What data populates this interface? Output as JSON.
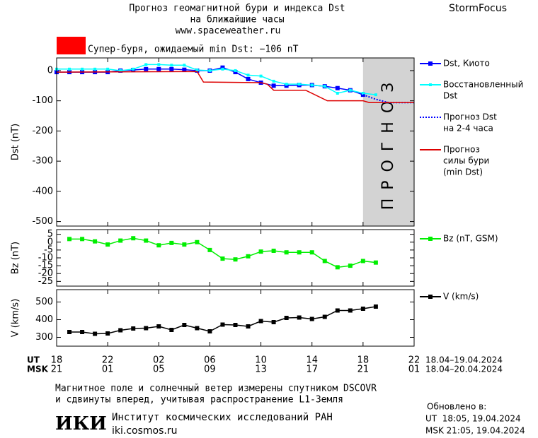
{
  "header": {
    "title": [
      "Прогноз геомагнитной бури и индекса Dst",
      "на ближайшие часы"
    ],
    "url": "www.spaceweather.ru",
    "brand": "StormFocus",
    "alert": "Супер-буря, ожидаемый min Dst: −106 nT",
    "alert_color": "#ff0000"
  },
  "chart_data": [
    {
      "type": "line",
      "ylabel": "Dst (nT)",
      "xlim": [
        0,
        28
      ],
      "ylim": [
        -515,
        42
      ],
      "yticks": [
        0,
        -100,
        -200,
        -300,
        -400,
        -500
      ],
      "forecast_region": {
        "xlim": [
          24,
          28
        ],
        "label": "ПРОГНОЗ",
        "color": "#d3d3d3"
      },
      "series": [
        {
          "name": [
            "Dst, Киото"
          ],
          "color": "#0000ff",
          "marker": "square",
          "style": "solid",
          "x": [
            0,
            1,
            2,
            3,
            4,
            5,
            6,
            7,
            8,
            9,
            10,
            11,
            12,
            13,
            14,
            15,
            16,
            17,
            18,
            19,
            20,
            21,
            22,
            23,
            24
          ],
          "values": [
            -5,
            -5,
            -5,
            -5,
            -5,
            0,
            2,
            5,
            5,
            5,
            3,
            0,
            0,
            10,
            -5,
            -28,
            -40,
            -50,
            -50,
            -48,
            -48,
            -52,
            -58,
            -65,
            -80
          ]
        },
        {
          "name": [
            "Восстановленный",
            "Dst"
          ],
          "color": "#00ffff",
          "marker": "small-square",
          "style": "solid",
          "x": [
            0,
            1,
            2,
            3,
            4,
            5,
            6,
            7,
            8,
            9,
            10,
            11,
            12,
            13,
            14,
            15,
            16,
            17,
            18,
            19,
            20,
            21,
            22,
            23,
            24,
            25
          ],
          "values": [
            5,
            5,
            5,
            5,
            5,
            0,
            5,
            20,
            20,
            18,
            18,
            2,
            0,
            5,
            0,
            -15,
            -18,
            -35,
            -45,
            -45,
            -48,
            -52,
            -75,
            -65,
            -75,
            -80
          ]
        },
        {
          "name": [
            "Прогноз Dst",
            "на 2-4 часа"
          ],
          "color": "#0000ff",
          "marker": "none",
          "style": "dotted",
          "x": [
            24,
            25,
            26,
            27,
            28
          ],
          "values": [
            -80,
            -95,
            -106,
            -106,
            -106
          ]
        },
        {
          "name": [
            "Прогноз",
            "силы бури",
            "(min Dst)"
          ],
          "color": "#dd0000",
          "marker": "none",
          "style": "solid",
          "x": [
            0,
            11,
            11.5,
            16,
            16.5,
            17,
            19.5,
            21.2,
            24,
            24.5,
            28
          ],
          "values": [
            -5,
            -3,
            -38,
            -40,
            -45,
            -65,
            -65,
            -100,
            -100,
            -106,
            -106
          ]
        }
      ]
    },
    {
      "type": "line",
      "ylabel": "Bz (nT)",
      "xlim": [
        0,
        28
      ],
      "ylim": [
        -28,
        8
      ],
      "yticks": [
        5,
        0,
        -5,
        -10,
        -15,
        -20,
        -25
      ],
      "series": [
        {
          "name": [
            "Bz (nT, GSM)"
          ],
          "color": "#00ee00",
          "marker": "square",
          "style": "solid",
          "x": [
            1,
            2,
            3,
            4,
            5,
            6,
            7,
            8,
            9,
            10,
            11,
            12,
            13,
            14,
            15,
            16,
            17,
            18,
            19,
            20,
            21,
            22,
            23,
            24,
            25
          ],
          "values": [
            2,
            2,
            0.5,
            -1.5,
            1,
            2.5,
            1,
            -2,
            -0.5,
            -1.5,
            0,
            -5,
            -10.5,
            -11,
            -9,
            -6,
            -5.5,
            -6.5,
            -6.5,
            -6.5,
            -12,
            -16,
            -15,
            -12,
            -13
          ]
        }
      ]
    },
    {
      "type": "line",
      "ylabel": "V (km/s)",
      "xlim": [
        0,
        28
      ],
      "ylim": [
        250,
        570
      ],
      "yticks": [
        300,
        400,
        500
      ],
      "xticks": [
        {
          "value": 0,
          "label": "18"
        },
        {
          "value": 4,
          "label": "22"
        },
        {
          "value": 8,
          "label": "02"
        },
        {
          "value": 12,
          "label": "06"
        },
        {
          "value": 16,
          "label": "10"
        },
        {
          "value": 20,
          "label": "14"
        },
        {
          "value": 24,
          "label": "18"
        },
        {
          "value": 28,
          "label": "22"
        }
      ],
      "msk_ticks": [
        {
          "value": 0,
          "label": "21"
        },
        {
          "value": 4,
          "label": "01"
        },
        {
          "value": 8,
          "label": "05"
        },
        {
          "value": 12,
          "label": "09"
        },
        {
          "value": 16,
          "label": "13"
        },
        {
          "value": 20,
          "label": "17"
        },
        {
          "value": 24,
          "label": "21"
        },
        {
          "value": 28,
          "label": "01"
        }
      ],
      "row_labels": [
        "UT",
        "MSK"
      ],
      "date_ranges": [
        "18.04–19.04.2024",
        "18.04–20.04.2024"
      ],
      "series": [
        {
          "name": [
            "V (km/s)"
          ],
          "color": "#000000",
          "marker": "square",
          "style": "solid",
          "x": [
            1,
            2,
            3,
            4,
            5,
            6,
            7,
            8,
            9,
            10,
            11,
            12,
            13,
            14,
            15,
            16,
            17,
            18,
            19,
            20,
            21,
            22,
            23,
            24,
            25
          ],
          "values": [
            330,
            330,
            320,
            322,
            340,
            350,
            352,
            362,
            342,
            370,
            352,
            334,
            372,
            370,
            362,
            392,
            386,
            410,
            412,
            404,
            416,
            452,
            452,
            462,
            474
          ]
        }
      ]
    }
  ],
  "footer": {
    "note": [
      "Магнитное поле и солнечный ветер измерены спутником DSCOVR",
      "и сдвинуты вперед, учитывая распространение L1-Земля"
    ],
    "logo": "ИКИ",
    "institute": "Институт космических исследований РАН",
    "site": "iki.cosmos.ru",
    "updated": "Обновлено в:",
    "updated_ut": "UT  18:05, 19.04.2024",
    "updated_msk": "MSK 21:05, 19.04.2024"
  }
}
